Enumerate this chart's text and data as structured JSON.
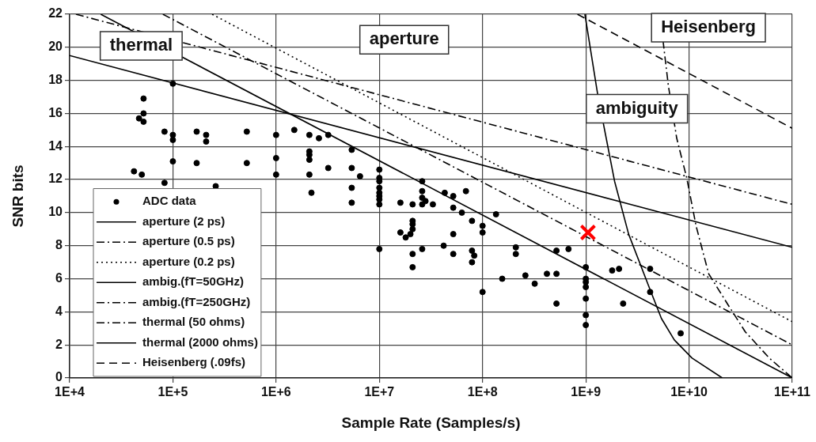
{
  "chart_data": {
    "type": "scatter",
    "xlabel": "Sample Rate (Samples/s)",
    "ylabel": "SNR bits",
    "log": "x",
    "grid": true,
    "legend": "bottom left",
    "xlim": [
      10000,
      100000000000
    ],
    "xticks": [
      {
        "value": 10000,
        "label": "1E+4"
      },
      {
        "value": 100000,
        "label": "1E+5"
      },
      {
        "value": 1000000,
        "label": "1E+6"
      },
      {
        "value": 10000000,
        "label": "1E+7"
      },
      {
        "value": 100000000,
        "label": "1E+8"
      },
      {
        "value": 1000000000,
        "label": "1E+9"
      },
      {
        "value": 10000000000,
        "label": "1E+10"
      },
      {
        "value": 100000000000,
        "label": "1E+11"
      }
    ],
    "ylim": [
      0,
      22
    ],
    "yticks": [
      0,
      2,
      4,
      6,
      8,
      10,
      12,
      14,
      16,
      18,
      20,
      22
    ],
    "annotations": [
      "thermal",
      "aperture",
      "ambiguity",
      "Heisenberg"
    ],
    "series": [
      {
        "name": "ADC data",
        "marker": "circle",
        "color": "#000000",
        "x": [
          100000,
          52000,
          52000,
          47000,
          52000,
          83000,
          100000,
          100000,
          170000,
          210000,
          210000,
          520000,
          100000,
          170000,
          520000,
          42000,
          50000,
          83000,
          260000,
          1000000,
          1000000,
          1000000,
          1500000,
          2100000,
          2600000,
          3200000,
          2100000,
          2100000,
          2100000,
          2100000,
          3200000,
          5400000,
          5400000,
          6500000,
          2200000,
          5400000,
          5400000,
          10000000,
          10000000,
          10000000,
          10000000,
          10000000,
          10000000,
          10000000,
          10000000,
          10000000,
          26000000,
          26000000,
          26000000,
          28000000,
          26000000,
          33000000,
          16000000,
          21000000,
          43000000,
          52000000,
          69000000,
          52000000,
          63000000,
          79000000,
          135000000,
          100000000,
          100000000,
          21000000,
          21000000,
          21000000,
          20000000,
          18000000,
          16000000,
          26000000,
          42000000,
          21000000,
          21000000,
          52000000,
          52000000,
          79000000,
          83000000,
          79000000,
          100000000,
          210000000,
          210000000,
          155000000,
          260000000,
          320000000,
          420000000,
          520000000,
          520000000,
          520000000,
          680000000,
          1000000000,
          1000000000,
          1000000000,
          1000000000,
          1000000000,
          1000000000,
          1000000000,
          1800000000,
          2100000000,
          2300000000,
          4200000000,
          4200000000,
          8300000000
        ],
        "values": [
          17.8,
          16.9,
          16.0,
          15.7,
          15.5,
          14.9,
          14.7,
          14.4,
          14.9,
          14.7,
          14.3,
          14.9,
          13.1,
          13.0,
          13.0,
          12.5,
          12.3,
          11.8,
          11.6,
          14.7,
          13.3,
          12.3,
          15.0,
          14.7,
          14.5,
          14.7,
          13.7,
          13.5,
          13.2,
          12.3,
          12.7,
          13.8,
          12.7,
          12.2,
          11.2,
          11.5,
          10.6,
          12.6,
          12.1,
          11.9,
          11.5,
          11.2,
          11.0,
          10.8,
          10.5,
          7.8,
          11.9,
          11.3,
          10.9,
          10.7,
          10.5,
          10.5,
          10.6,
          10.5,
          11.2,
          11.0,
          11.3,
          10.3,
          10.0,
          9.5,
          9.9,
          9.2,
          8.8,
          9.5,
          9.3,
          9.0,
          8.7,
          8.5,
          8.8,
          7.8,
          8.0,
          7.5,
          6.7,
          8.7,
          7.5,
          7.7,
          7.4,
          7.0,
          5.2,
          7.9,
          7.5,
          6.0,
          6.2,
          5.7,
          6.3,
          6.3,
          4.5,
          7.7,
          7.8,
          6.7,
          6.0,
          5.8,
          5.5,
          4.8,
          3.8,
          3.2,
          6.5,
          6.6,
          4.5,
          6.6,
          5.2,
          2.7
        ]
      },
      {
        "name": "aperture (2 ps)",
        "type": "line",
        "line_style": "solid",
        "color": "#000000",
        "x": [
          20000,
          100000000000
        ],
        "values": [
          22,
          0
        ]
      },
      {
        "name": "aperture (0.5 ps)",
        "type": "line",
        "line_style": "dashdot",
        "color": "#000000",
        "x": [
          80000,
          100000000000
        ],
        "values": [
          22,
          2
        ]
      },
      {
        "name": "aperture (0.2 ps)",
        "type": "line",
        "line_style": "dotted",
        "color": "#000000",
        "x": [
          240000,
          100000000000
        ],
        "values": [
          22,
          3.4
        ]
      },
      {
        "name": "ambig.(fT=50GHz)",
        "type": "line",
        "line_style": "solid",
        "color": "#000000",
        "x": [
          980000000,
          1300000000,
          1900000000,
          2600000000,
          4100000000,
          5400000000,
          7200000000,
          10700000000,
          21000000000
        ],
        "values": [
          22,
          17.2,
          11.9,
          8.7,
          5.5,
          3.6,
          2.3,
          1.2,
          0
        ]
      },
      {
        "name": "ambig.(fT=250GHz)",
        "type": "line",
        "line_style": "dashdot",
        "color": "#000000",
        "x": [
          5600000000,
          6300000000,
          7600000000,
          9500000000,
          11700000000,
          15500000000,
          24000000000,
          35000000000,
          60000000000,
          100000000000
        ],
        "values": [
          20.4,
          17.7,
          14.5,
          12.1,
          9.2,
          6.3,
          4.4,
          2.8,
          1.2,
          0
        ]
      },
      {
        "name": "thermal (50 ohms)",
        "type": "line",
        "line_style": "dashdot",
        "color": "#000000",
        "x": [
          11500,
          100000000000
        ],
        "values": [
          22,
          10.5
        ]
      },
      {
        "name": "thermal (2000 ohms)",
        "type": "line",
        "line_style": "solid",
        "color": "#000000",
        "x": [
          10000,
          100000000000
        ],
        "values": [
          19.5,
          7.9
        ]
      },
      {
        "name": "Heisenberg (.09fs)",
        "type": "line",
        "line_style": "dashed",
        "color": "#000000",
        "x": [
          830000000,
          100000000000
        ],
        "values": [
          22,
          15.1
        ]
      },
      {
        "marker": "cross",
        "color": "#ff0000",
        "x": [
          1050000000
        ],
        "values": [
          8.8
        ]
      }
    ]
  }
}
